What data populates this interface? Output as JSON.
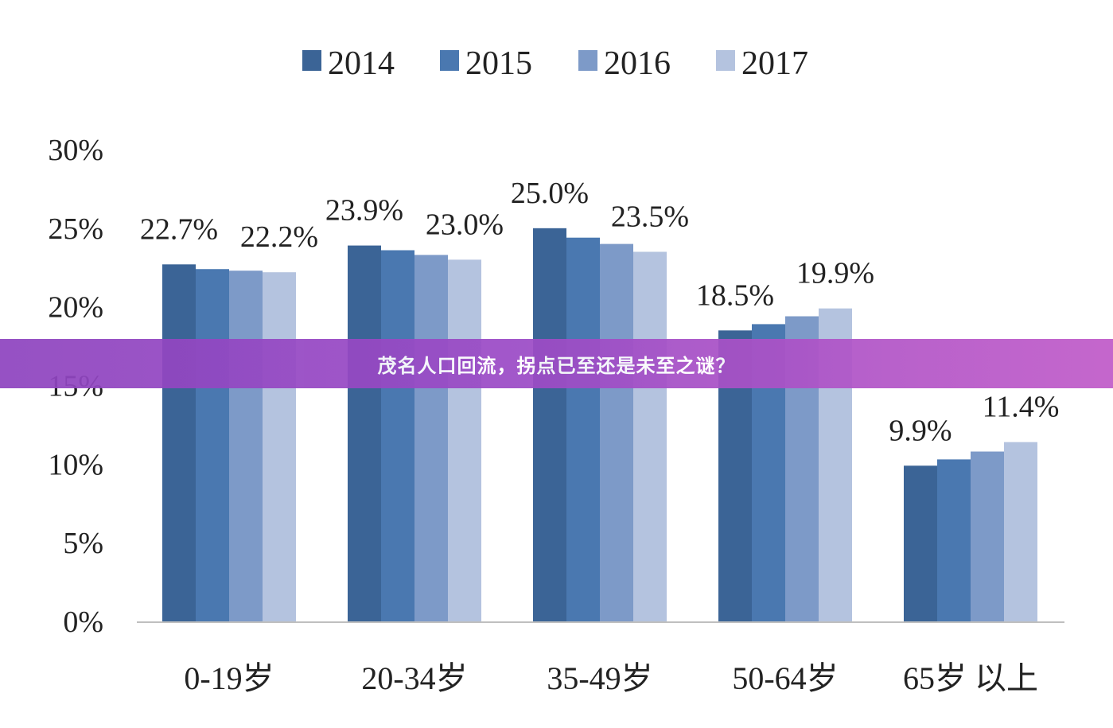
{
  "banner": {
    "title": "茂名人口回流，拐点已至还是未至之谜？"
  },
  "chart_data": {
    "type": "bar",
    "title": "",
    "xlabel": "",
    "ylabel": "",
    "ylim": [
      0,
      30
    ],
    "y_ticks": [
      "0%",
      "5%",
      "10%",
      "15%",
      "20%",
      "25%",
      "30%"
    ],
    "y_tick_values": [
      0,
      5,
      10,
      15,
      20,
      25,
      30
    ],
    "grid": false,
    "legend_position": "top-center",
    "categories": [
      "0-19岁",
      "20-34岁",
      "35-49岁",
      "50-64岁",
      "65岁 以上"
    ],
    "series": [
      {
        "name": "2014",
        "color": "#3b6496",
        "values": [
          22.7,
          23.9,
          25.0,
          18.5,
          9.9
        ]
      },
      {
        "name": "2015",
        "color": "#4a78b0",
        "values": [
          22.4,
          23.6,
          24.4,
          18.9,
          10.3
        ]
      },
      {
        "name": "2016",
        "color": "#7d9ac8",
        "values": [
          22.3,
          23.3,
          24.0,
          19.4,
          10.8
        ]
      },
      {
        "name": "2017",
        "color": "#b4c3df",
        "values": [
          22.2,
          23.0,
          23.5,
          19.9,
          11.4
        ]
      }
    ],
    "data_labels": [
      {
        "category": 0,
        "series": 0,
        "text": "22.7%"
      },
      {
        "category": 0,
        "series": 3,
        "text": "22.2%"
      },
      {
        "category": 1,
        "series": 0,
        "text": "23.9%"
      },
      {
        "category": 1,
        "series": 3,
        "text": "23.0%"
      },
      {
        "category": 2,
        "series": 0,
        "text": "25.0%"
      },
      {
        "category": 2,
        "series": 3,
        "text": "23.5%"
      },
      {
        "category": 3,
        "series": 0,
        "text": "18.5%"
      },
      {
        "category": 3,
        "series": 3,
        "text": "19.9%"
      },
      {
        "category": 4,
        "series": 0,
        "text": "9.9%"
      },
      {
        "category": 4,
        "series": 3,
        "text": "11.4%"
      }
    ]
  }
}
